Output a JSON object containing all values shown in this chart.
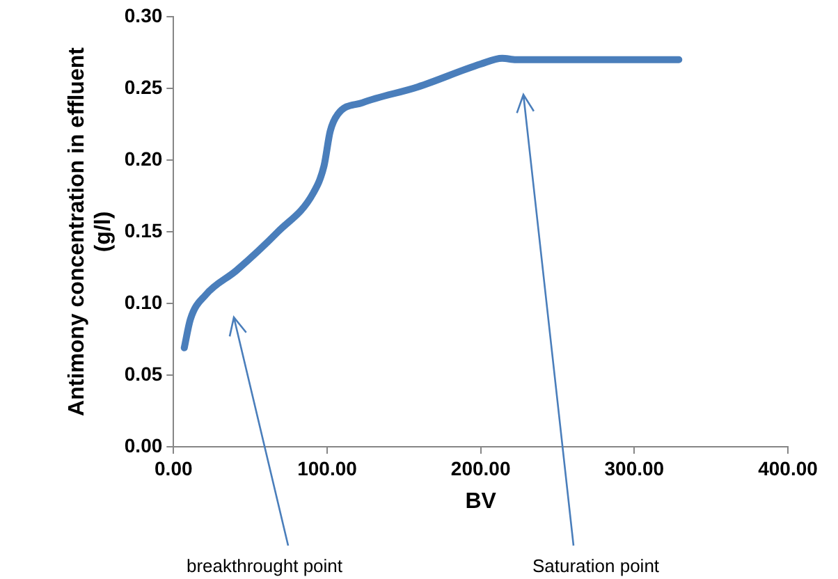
{
  "chart_data": {
    "type": "line",
    "xlabel": "BV",
    "ylabel": "Antimony concentration in effluent (g/l)",
    "x": [
      7,
      11,
      21,
      41,
      68,
      91,
      98,
      102,
      107,
      123,
      159,
      200,
      214,
      223,
      329
    ],
    "series": [
      {
        "color": "#4a7ebb",
        "values": [
          0.069,
          0.089,
          0.106,
          0.123,
          0.15,
          0.177,
          0.196,
          0.22,
          0.232,
          0.24,
          0.251,
          0.267,
          0.271,
          0.27,
          0.27
        ]
      }
    ],
    "xlim": [
      0,
      400
    ],
    "xticks": [
      {
        "value": 0,
        "label": "0.00"
      },
      {
        "value": 100,
        "label": "100.00"
      },
      {
        "value": 200,
        "label": "200.00"
      },
      {
        "value": 300,
        "label": "300.00"
      },
      {
        "value": 400,
        "label": "400.00"
      }
    ],
    "ylim": [
      0,
      0.3
    ],
    "yticks": [
      {
        "value": 0,
        "label": "0.00"
      },
      {
        "value": 0.05,
        "label": "0.05"
      },
      {
        "value": 0.1,
        "label": "0.10"
      },
      {
        "value": 0.15,
        "label": "0.15"
      },
      {
        "value": 0.2,
        "label": "0.20"
      },
      {
        "value": 0.25,
        "label": "0.25"
      },
      {
        "value": 0.3,
        "label": "0.30"
      }
    ],
    "annotations": [
      "breakthrought point",
      "Saturation point"
    ],
    "grid": false,
    "legend": false,
    "marker": "none",
    "line_style": "solid"
  }
}
